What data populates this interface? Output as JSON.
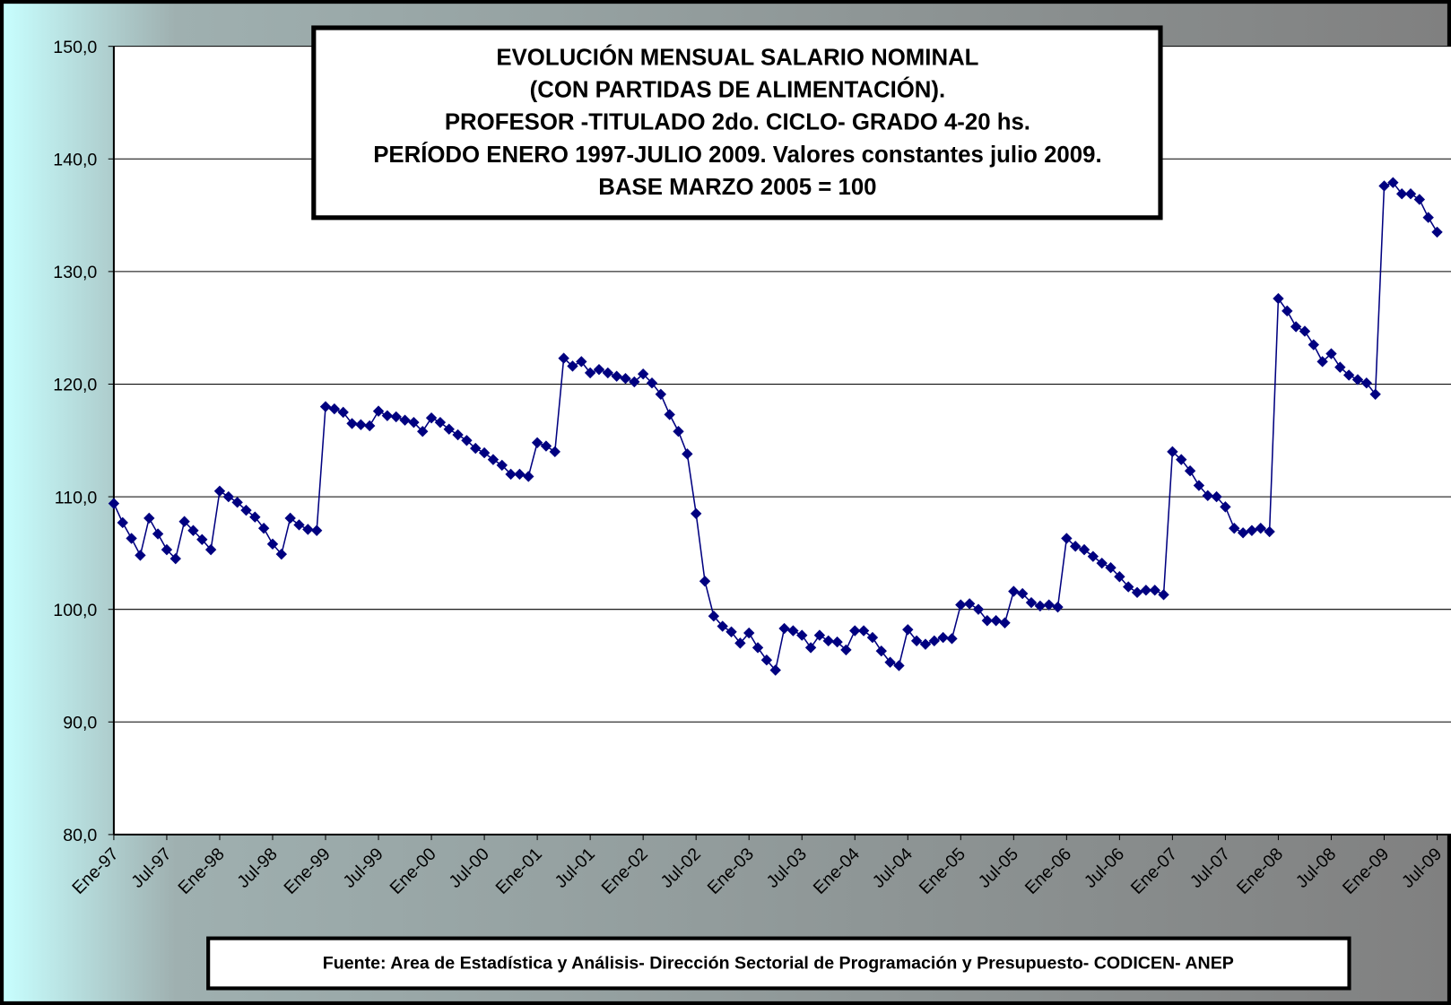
{
  "chart_data": {
    "type": "line",
    "title": [
      "EVOLUCIÓN MENSUAL SALARIO NOMINAL",
      "(CON PARTIDAS DE ALIMENTACIÓN).",
      "PROFESOR -TITULADO 2do. CICLO- GRADO 4-20 hs.",
      "PERÍODO ENERO 1997-JULIO 2009. Valores constantes julio 2009.",
      "BASE MARZO 2005 = 100"
    ],
    "source": "Fuente: Area de Estadística y Análisis- Dirección Sectorial de Programación y Presupuesto- CODICEN- ANEP",
    "categories": [
      "Ene-97",
      null,
      null,
      null,
      null,
      null,
      "Jul-97",
      null,
      null,
      null,
      null,
      null,
      "Ene-98",
      null,
      null,
      null,
      null,
      null,
      "Jul-98",
      null,
      null,
      null,
      null,
      null,
      "Ene-99",
      null,
      null,
      null,
      null,
      null,
      "Jul-99",
      null,
      null,
      null,
      null,
      null,
      "Ene-00",
      null,
      null,
      null,
      null,
      null,
      "Jul-00",
      null,
      null,
      null,
      null,
      null,
      "Ene-01",
      null,
      null,
      null,
      null,
      null,
      "Jul-01",
      null,
      null,
      null,
      null,
      null,
      "Ene-02",
      null,
      null,
      null,
      null,
      null,
      "Jul-02",
      null,
      null,
      null,
      null,
      null,
      "Ene-03",
      null,
      null,
      null,
      null,
      null,
      "Jul-03",
      null,
      null,
      null,
      null,
      null,
      "Ene-04",
      null,
      null,
      null,
      null,
      null,
      "Jul-04",
      null,
      null,
      null,
      null,
      null,
      "Ene-05",
      null,
      null,
      null,
      null,
      null,
      "Jul-05",
      null,
      null,
      null,
      null,
      null,
      "Ene-06",
      null,
      null,
      null,
      null,
      null,
      "Jul-06",
      null,
      null,
      null,
      null,
      null,
      "Ene-07",
      null,
      null,
      null,
      null,
      null,
      "Jul-07",
      null,
      null,
      null,
      null,
      null,
      "Ene-08",
      null,
      null,
      null,
      null,
      null,
      "Jul-08",
      null,
      null,
      null,
      null,
      null,
      "Ene-09",
      null,
      null,
      null,
      null,
      null,
      "Jul-09"
    ],
    "series": [
      {
        "color": "#000080",
        "values": [
          109.4,
          107.7,
          106.3,
          104.8,
          108.1,
          106.7,
          105.3,
          104.5,
          107.8,
          107.0,
          106.2,
          105.3,
          110.5,
          110.0,
          109.5,
          108.8,
          108.2,
          107.2,
          105.8,
          104.9,
          108.1,
          107.5,
          107.1,
          107.0,
          118.0,
          117.8,
          117.5,
          116.5,
          116.4,
          116.3,
          117.6,
          117.2,
          117.1,
          116.8,
          116.6,
          115.8,
          117.0,
          116.6,
          116.0,
          115.5,
          115.0,
          114.3,
          113.9,
          113.3,
          112.8,
          112.0,
          112.0,
          111.8,
          114.8,
          114.5,
          114.0,
          122.3,
          121.6,
          122.0,
          121.0,
          121.3,
          121.0,
          120.7,
          120.5,
          120.2,
          120.9,
          120.1,
          119.1,
          117.3,
          115.8,
          113.8,
          108.5,
          102.5,
          99.4,
          98.5,
          98.0,
          97.0,
          97.9,
          96.6,
          95.5,
          94.6,
          98.3,
          98.1,
          97.7,
          96.6,
          97.7,
          97.2,
          97.1,
          96.4,
          98.1,
          98.1,
          97.5,
          96.3,
          95.3,
          95.0,
          98.2,
          97.2,
          96.9,
          97.2,
          97.5,
          97.4,
          100.4,
          100.5,
          100.0,
          99.0,
          99.0,
          98.8,
          101.6,
          101.4,
          100.6,
          100.3,
          100.4,
          100.2,
          106.3,
          105.6,
          105.3,
          104.7,
          104.1,
          103.7,
          102.9,
          102.0,
          101.5,
          101.7,
          101.7,
          101.3,
          114.0,
          113.3,
          112.3,
          111.0,
          110.1,
          110.0,
          109.1,
          107.2,
          106.8,
          107.0,
          107.2,
          106.9,
          127.6,
          126.5,
          125.1,
          124.7,
          123.5,
          122.0,
          122.7,
          121.5,
          120.8,
          120.4,
          120.1,
          119.1,
          137.6,
          137.9,
          136.9,
          136.9,
          136.4,
          134.8,
          133.5
        ]
      }
    ],
    "ylim": [
      80,
      150
    ],
    "yticks": [
      {
        "value": 80,
        "label": "80,0"
      },
      {
        "value": 90,
        "label": "90,0"
      },
      {
        "value": 100,
        "label": "100,0"
      },
      {
        "value": 110,
        "label": "110,0"
      },
      {
        "value": 120,
        "label": "120,0"
      },
      {
        "value": 130,
        "label": "130,0"
      },
      {
        "value": 140,
        "label": "140,0"
      },
      {
        "value": 150,
        "label": "150,0"
      }
    ],
    "grid": true
  }
}
